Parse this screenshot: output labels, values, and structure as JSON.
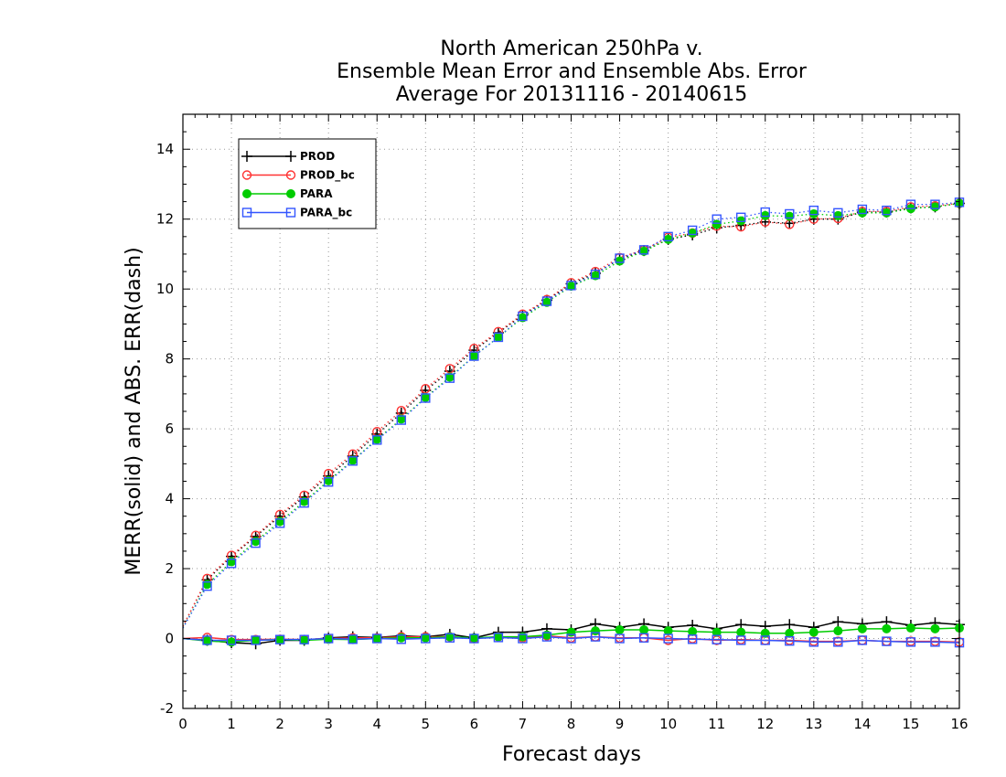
{
  "chart_data": {
    "type": "line",
    "title_lines": [
      "North American 250hPa v.",
      "Ensemble Mean Error and Ensemble Abs. Error",
      "Average For 20131116 - 20140615"
    ],
    "xlabel": "Forecast days",
    "ylabel": "MERR(solid) and ABS. ERR(dash)",
    "xlim": [
      0,
      16
    ],
    "ylim": [
      -2,
      15
    ],
    "xticks": [
      0,
      1,
      2,
      3,
      4,
      5,
      6,
      7,
      8,
      9,
      10,
      11,
      12,
      13,
      14,
      15,
      16
    ],
    "yticks": [
      -2,
      0,
      2,
      4,
      6,
      8,
      10,
      12,
      14
    ],
    "grid": true,
    "legend_position": "top-left",
    "x": [
      0,
      0.5,
      1,
      1.5,
      2,
      2.5,
      3,
      3.5,
      4,
      4.5,
      5,
      5.5,
      6,
      6.5,
      7,
      7.5,
      8,
      8.5,
      9,
      9.5,
      10,
      10.5,
      11,
      11.5,
      12,
      12.5,
      13,
      13.5,
      14,
      14.5,
      15,
      15.5,
      16
    ],
    "series": [
      {
        "name": "PROD",
        "color": "#000000",
        "marker": "plus",
        "merr": [
          0,
          -0.05,
          -0.12,
          -0.15,
          -0.05,
          -0.05,
          0.02,
          0.05,
          0.03,
          0.08,
          0.05,
          0.12,
          0.02,
          0.18,
          0.18,
          0.28,
          0.25,
          0.42,
          0.32,
          0.42,
          0.32,
          0.38,
          0.28,
          0.4,
          0.35,
          0.4,
          0.32,
          0.48,
          0.42,
          0.48,
          0.38,
          0.45,
          0.4
        ],
        "abs_err": [
          0.35,
          1.68,
          2.35,
          2.92,
          3.5,
          4.05,
          4.65,
          5.22,
          5.85,
          6.45,
          7.1,
          7.65,
          8.25,
          8.75,
          9.25,
          9.68,
          10.15,
          10.45,
          10.85,
          11.1,
          11.42,
          11.55,
          11.75,
          11.82,
          11.92,
          11.88,
          12.0,
          12.0,
          12.2,
          12.2,
          12.32,
          12.35,
          12.45
        ]
      },
      {
        "name": "PROD_bc",
        "color": "#ff3333",
        "marker": "circle",
        "merr": [
          0,
          0.03,
          -0.03,
          -0.03,
          -0.02,
          -0.03,
          0.0,
          0.02,
          0.02,
          0.05,
          0.05,
          0.05,
          0.0,
          0.05,
          0.02,
          0.08,
          0.02,
          0.05,
          0.02,
          0.02,
          -0.05,
          0.0,
          -0.05,
          -0.03,
          -0.05,
          -0.05,
          -0.08,
          -0.08,
          -0.05,
          -0.08,
          -0.08,
          -0.08,
          -0.1
        ],
        "abs_err": [
          0.35,
          1.72,
          2.38,
          2.95,
          3.55,
          4.1,
          4.72,
          5.28,
          5.92,
          6.52,
          7.15,
          7.72,
          8.3,
          8.78,
          9.28,
          9.7,
          10.18,
          10.5,
          10.9,
          11.12,
          11.48,
          11.6,
          11.8,
          11.78,
          11.92,
          11.85,
          12.0,
          12.02,
          12.22,
          12.22,
          12.35,
          12.38,
          12.45
        ]
      },
      {
        "name": "PARA",
        "color": "#00cc00",
        "marker": "filled-circle",
        "merr": [
          0,
          -0.07,
          -0.1,
          -0.05,
          -0.03,
          -0.05,
          -0.02,
          -0.03,
          0.0,
          0.02,
          0.02,
          0.05,
          0.02,
          0.05,
          0.05,
          0.1,
          0.18,
          0.22,
          0.25,
          0.25,
          0.22,
          0.2,
          0.18,
          0.18,
          0.15,
          0.15,
          0.18,
          0.22,
          0.28,
          0.28,
          0.3,
          0.28,
          0.3
        ],
        "abs_err": [
          0.3,
          1.55,
          2.2,
          2.78,
          3.35,
          3.92,
          4.52,
          5.1,
          5.7,
          6.28,
          6.9,
          7.48,
          8.08,
          8.62,
          9.18,
          9.62,
          10.08,
          10.38,
          10.8,
          11.08,
          11.42,
          11.6,
          11.85,
          11.95,
          12.1,
          12.08,
          12.15,
          12.1,
          12.18,
          12.18,
          12.3,
          12.35,
          12.45
        ]
      },
      {
        "name": "PARA_bc",
        "color": "#3355ff",
        "marker": "square",
        "merr": [
          0,
          -0.05,
          -0.05,
          -0.05,
          -0.03,
          -0.03,
          0.0,
          -0.02,
          0.0,
          -0.02,
          0.0,
          0.02,
          0.0,
          0.03,
          0.0,
          0.05,
          0.0,
          0.05,
          0.0,
          0.02,
          0.0,
          -0.02,
          -0.03,
          -0.05,
          -0.05,
          -0.07,
          -0.1,
          -0.1,
          -0.05,
          -0.08,
          -0.1,
          -0.1,
          -0.12
        ],
        "abs_err": [
          0.3,
          1.5,
          2.15,
          2.73,
          3.3,
          3.88,
          4.48,
          5.08,
          5.68,
          6.25,
          6.88,
          7.45,
          8.08,
          8.62,
          9.22,
          9.65,
          10.1,
          10.42,
          10.88,
          11.12,
          11.5,
          11.68,
          12.0,
          12.05,
          12.2,
          12.15,
          12.25,
          12.18,
          12.28,
          12.25,
          12.42,
          12.42,
          12.48
        ]
      }
    ]
  }
}
